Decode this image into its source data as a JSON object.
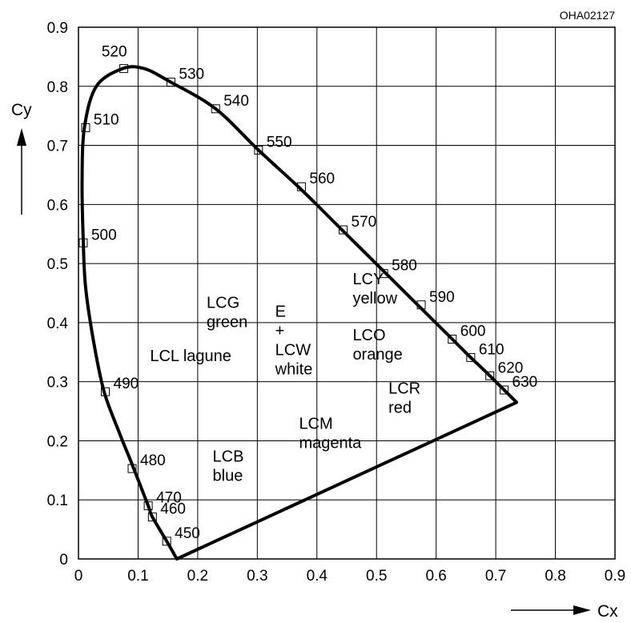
{
  "chart_data": {
    "type": "scatter",
    "title": "",
    "figure_code": "OHA02127",
    "xlabel": "Cx",
    "ylabel": "Cy",
    "xlim": [
      0,
      0.9
    ],
    "ylim": [
      0,
      0.9
    ],
    "xticks": [
      "0",
      "0.1",
      "0.2",
      "0.3",
      "0.4",
      "0.5",
      "0.6",
      "0.7",
      "0.8",
      "0.9"
    ],
    "yticks": [
      "0",
      "0.1",
      "0.2",
      "0.3",
      "0.4",
      "0.5",
      "0.6",
      "0.7",
      "0.8",
      "0.9"
    ],
    "grid": true,
    "spectral_locus": [
      [
        0.165,
        0.0
      ],
      [
        0.148,
        0.03
      ],
      [
        0.124,
        0.071
      ],
      [
        0.117,
        0.09
      ],
      [
        0.09,
        0.16
      ],
      [
        0.07,
        0.21
      ],
      [
        0.043,
        0.283
      ],
      [
        0.025,
        0.37
      ],
      [
        0.012,
        0.46
      ],
      [
        0.008,
        0.538
      ],
      [
        0.006,
        0.64
      ],
      [
        0.01,
        0.73
      ],
      [
        0.03,
        0.8
      ],
      [
        0.074,
        0.83
      ],
      [
        0.11,
        0.83
      ],
      [
        0.155,
        0.807
      ],
      [
        0.23,
        0.762
      ],
      [
        0.302,
        0.692
      ],
      [
        0.374,
        0.625
      ],
      [
        0.444,
        0.555
      ],
      [
        0.512,
        0.487
      ],
      [
        0.575,
        0.424
      ],
      [
        0.627,
        0.372
      ],
      [
        0.658,
        0.341
      ],
      [
        0.69,
        0.31
      ],
      [
        0.735,
        0.265
      ]
    ],
    "purple_line": [
      [
        0.735,
        0.265
      ],
      [
        0.165,
        0.0
      ]
    ],
    "wavelengths": [
      {
        "nm": "450",
        "x": 0.148,
        "y": 0.03,
        "side": "right"
      },
      {
        "nm": "460",
        "x": 0.124,
        "y": 0.071,
        "side": "right"
      },
      {
        "nm": "470",
        "x": 0.117,
        "y": 0.09,
        "side": "right"
      },
      {
        "nm": "480",
        "x": 0.09,
        "y": 0.153,
        "side": "right"
      },
      {
        "nm": "490",
        "x": 0.045,
        "y": 0.283,
        "side": "right"
      },
      {
        "nm": "500",
        "x": 0.008,
        "y": 0.535,
        "side": "right"
      },
      {
        "nm": "510",
        "x": 0.012,
        "y": 0.73,
        "side": "right"
      },
      {
        "nm": "520",
        "x": 0.076,
        "y": 0.83,
        "side": "left"
      },
      {
        "nm": "530",
        "x": 0.155,
        "y": 0.807,
        "side": "right"
      },
      {
        "nm": "540",
        "x": 0.23,
        "y": 0.762,
        "side": "right"
      },
      {
        "nm": "550",
        "x": 0.302,
        "y": 0.692,
        "side": "right"
      },
      {
        "nm": "560",
        "x": 0.374,
        "y": 0.63,
        "side": "right"
      },
      {
        "nm": "570",
        "x": 0.444,
        "y": 0.557,
        "side": "right"
      },
      {
        "nm": "580",
        "x": 0.512,
        "y": 0.483,
        "side": "right"
      },
      {
        "nm": "590",
        "x": 0.575,
        "y": 0.43,
        "side": "right"
      },
      {
        "nm": "600",
        "x": 0.627,
        "y": 0.372,
        "side": "right"
      },
      {
        "nm": "610",
        "x": 0.658,
        "y": 0.341,
        "side": "right"
      },
      {
        "nm": "620",
        "x": 0.69,
        "y": 0.31,
        "side": "right"
      },
      {
        "nm": "630",
        "x": 0.714,
        "y": 0.286,
        "side": "right"
      }
    ],
    "regions": [
      {
        "lines": [
          "LCG",
          "green"
        ],
        "x": 0.215,
        "y": 0.425
      },
      {
        "lines": [
          "E",
          "+",
          "LCW",
          "white"
        ],
        "x": 0.33,
        "y": 0.41
      },
      {
        "lines": [
          "LCL lagune"
        ],
        "x": 0.12,
        "y": 0.335
      },
      {
        "lines": [
          "LCY",
          "yellow"
        ],
        "x": 0.46,
        "y": 0.465
      },
      {
        "lines": [
          "LCO",
          "orange"
        ],
        "x": 0.46,
        "y": 0.37
      },
      {
        "lines": [
          "LCR",
          "red"
        ],
        "x": 0.52,
        "y": 0.28
      },
      {
        "lines": [
          "LCM",
          "magenta"
        ],
        "x": 0.37,
        "y": 0.22
      },
      {
        "lines": [
          "LCB",
          "blue"
        ],
        "x": 0.225,
        "y": 0.165
      }
    ]
  }
}
